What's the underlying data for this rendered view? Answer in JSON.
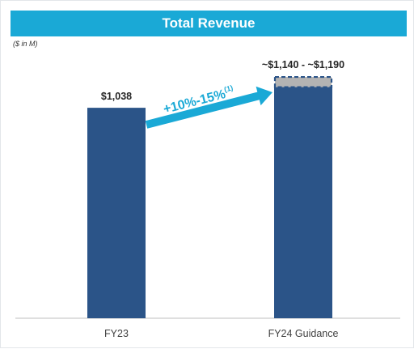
{
  "title": "Total Revenue",
  "units": "($ in M)",
  "colors": {
    "title_bar": "#1aa9d6",
    "bar": "#2b5488",
    "range": "#b3b3b3",
    "range_border": "#2b5488",
    "arrow": "#1aa9d6",
    "axis": "#bfbfbf"
  },
  "chart_data": {
    "type": "bar",
    "title": "Total Revenue",
    "ylabel": "($ in M)",
    "categories": [
      "FY23",
      "FY24 Guidance"
    ],
    "values": [
      1038,
      1140
    ],
    "range_upper": [
      null,
      1190
    ],
    "data_labels": [
      "$1,038",
      "~$1,140 - ~$1,190"
    ],
    "growth_annotation": {
      "text": "+10%-15%",
      "footnote": "(1)"
    },
    "ylim": [
      0,
      1310
    ],
    "grid": false,
    "legend": "none"
  }
}
